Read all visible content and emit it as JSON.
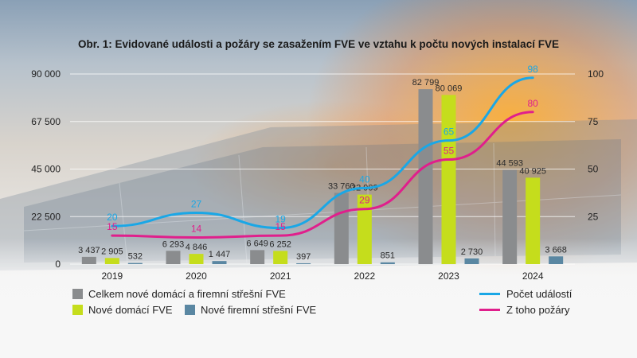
{
  "title": "Obr. 1: Evidované události a požáry se zasažením FVE ve vztahu k počtu nových instalací FVE",
  "colors": {
    "total": "#8a8c8e",
    "home": "#c5dd1c",
    "business": "#5a87a2",
    "events": "#1aa7e6",
    "fires": "#e01f8c"
  },
  "chart_data": {
    "type": "bar",
    "categories": [
      "2019",
      "2020",
      "2021",
      "2022",
      "2023",
      "2024"
    ],
    "left_axis": {
      "ylim": [
        0,
        90000
      ],
      "ticks": [
        "0",
        "22 500",
        "45 000",
        "67 500",
        "90 000"
      ],
      "tick_values": [
        0,
        22500,
        45000,
        67500,
        90000
      ]
    },
    "right_axis": {
      "ylim": [
        0,
        100
      ],
      "ticks": [
        "25",
        "50",
        "75",
        "100"
      ],
      "tick_values": [
        25,
        50,
        75,
        100
      ]
    },
    "series": [
      {
        "name": "Celkem nové domácí a firemní střešní FVE",
        "kind": "bar",
        "values": [
          3437,
          6293,
          6649,
          33760,
          82799,
          44593
        ],
        "labels": [
          "3 437",
          "6 293",
          "6 649",
          "33 760",
          "82 799",
          "44 593"
        ]
      },
      {
        "name": "Nové domácí FVE",
        "kind": "bar",
        "values": [
          2905,
          4846,
          6252,
          32909,
          80069,
          40925
        ],
        "labels": [
          "2 905",
          "4 846",
          "6 252",
          "32 909",
          "80 069",
          "40 925"
        ]
      },
      {
        "name": "Nové firemní střešní FVE",
        "kind": "bar",
        "values": [
          532,
          1447,
          397,
          851,
          2730,
          3668
        ],
        "labels": [
          "532",
          "1 447",
          "397",
          "851",
          "2 730",
          "3 668"
        ]
      },
      {
        "name": "Počet událostí",
        "kind": "line",
        "axis": "right",
        "values": [
          20,
          27,
          19,
          40,
          65,
          98
        ],
        "labels": [
          "20",
          "27",
          "19",
          "40",
          "65",
          "98"
        ]
      },
      {
        "name": "Z toho požáry",
        "kind": "line",
        "axis": "right",
        "values": [
          15,
          14,
          15,
          29,
          55,
          80
        ],
        "labels": [
          "15",
          "14",
          "15",
          "29",
          "55",
          "80"
        ]
      }
    ],
    "grid": true
  },
  "legend": {
    "total": "Celkem nové domácí a firemní střešní FVE",
    "home": "Nové domácí FVE",
    "business": "Nové firemní střešní FVE",
    "events": "Počet událostí",
    "fires": "Z toho požáry"
  }
}
